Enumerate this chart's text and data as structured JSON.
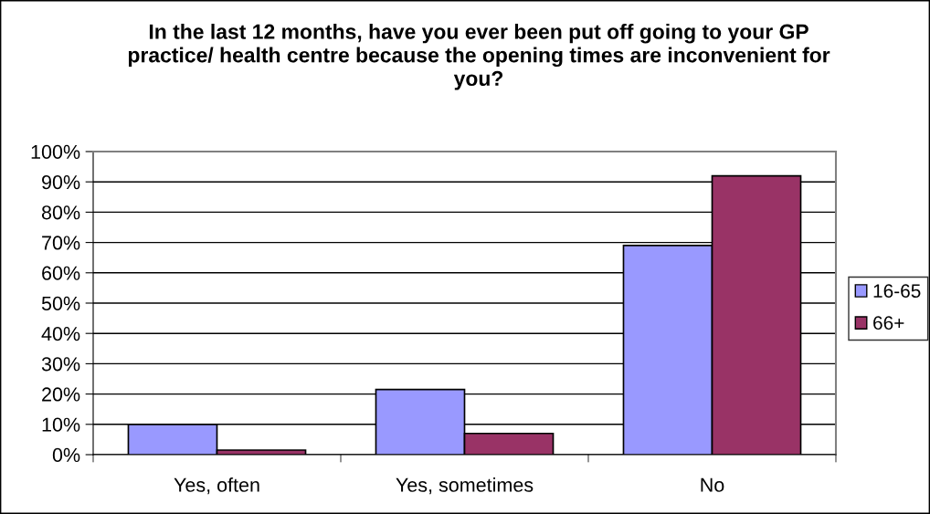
{
  "chart_data": {
    "type": "bar",
    "title": "In the last 12 months, have you ever been put off going to your GP practice/ health centre because the opening times are inconvenient for you?",
    "categories": [
      "Yes, often",
      "Yes, sometimes",
      "No"
    ],
    "series": [
      {
        "name": "16-65",
        "color": "#9999ff",
        "values": [
          10,
          21.5,
          69
        ]
      },
      {
        "name": "66+",
        "color": "#993366",
        "values": [
          1.5,
          7,
          92
        ]
      }
    ],
    "ylim": [
      0,
      100
    ],
    "yticks": [
      {
        "value": 0,
        "label": "0%"
      },
      {
        "value": 10,
        "label": "10%"
      },
      {
        "value": 20,
        "label": "20%"
      },
      {
        "value": 30,
        "label": "30%"
      },
      {
        "value": 40,
        "label": "40%"
      },
      {
        "value": 50,
        "label": "50%"
      },
      {
        "value": 60,
        "label": "60%"
      },
      {
        "value": 70,
        "label": "70%"
      },
      {
        "value": 80,
        "label": "80%"
      },
      {
        "value": 90,
        "label": "90%"
      },
      {
        "value": 100,
        "label": "100%"
      }
    ],
    "grid": "y",
    "legend": "right"
  }
}
